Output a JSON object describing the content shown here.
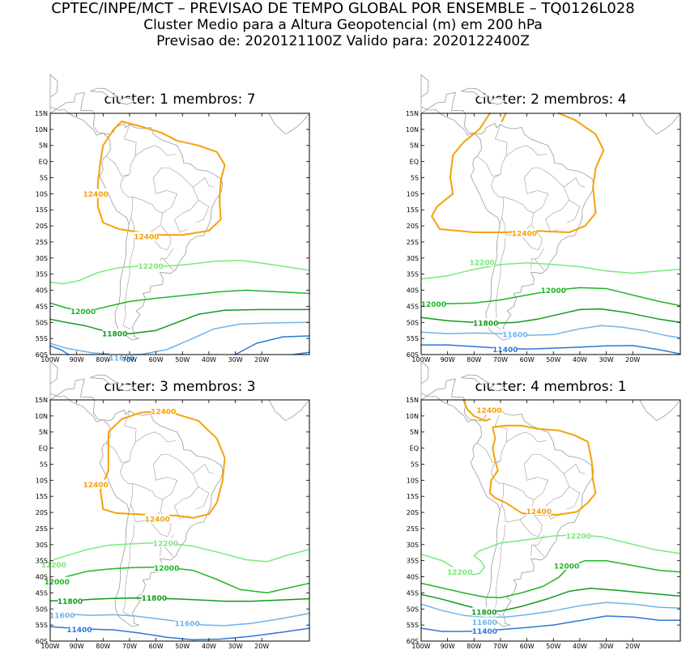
{
  "header": {
    "line1": "CPTEC/INPE/MCT – PREVISAO DE TEMPO GLOBAL POR ENSEMBLE – TQ0126L028",
    "line2": "Cluster Medio para a Altura Geopotencial (m) em 200 hPa",
    "line3": "Previsao de: 2020121100Z    Valido para: 2020122400Z"
  },
  "axes": {
    "lat_labels": [
      "15N",
      "10N",
      "5N",
      "EQ",
      "5S",
      "10S",
      "15S",
      "20S",
      "25S",
      "30S",
      "35S",
      "40S",
      "45S",
      "50S",
      "55S",
      "60S"
    ],
    "lon_labels": [
      "100W",
      "90W",
      "80W",
      "70W",
      "60W",
      "50W",
      "40W",
      "30W",
      "20W"
    ]
  },
  "colors": {
    "c12400": "#f5a10a",
    "c12200": "#7ae87a",
    "c12000": "#22b42a",
    "c11800": "#129a1a",
    "c11600": "#6fb4ec",
    "c11400": "#2e78d6",
    "land": "#9a9a9a"
  },
  "panels": [
    {
      "title": "cluster: 1   membros: 7",
      "labels": [
        {
          "text": "12400",
          "color": "c12400"
        },
        {
          "text": "12400",
          "color": "c12400"
        },
        {
          "text": "12200",
          "color": "c12200"
        },
        {
          "text": "12000",
          "color": "c12000"
        },
        {
          "text": "11800",
          "color": "c11800"
        },
        {
          "text": "11600",
          "color": "c11600"
        }
      ]
    },
    {
      "title": "cluster: 2   membros: 4",
      "labels": [
        {
          "text": "12400",
          "color": "c12400"
        },
        {
          "text": "12200",
          "color": "c12200"
        },
        {
          "text": "12000",
          "color": "c12000"
        },
        {
          "text": "12000",
          "color": "c12000"
        },
        {
          "text": "11800",
          "color": "c11800"
        },
        {
          "text": "11600",
          "color": "c11600"
        },
        {
          "text": "11400",
          "color": "c11400"
        }
      ]
    },
    {
      "title": "cluster: 3   membros: 3",
      "labels": [
        {
          "text": "12400",
          "color": "c12400"
        },
        {
          "text": "12400",
          "color": "c12400"
        },
        {
          "text": "12400",
          "color": "c12400"
        },
        {
          "text": "12200",
          "color": "c12200"
        },
        {
          "text": "12200",
          "color": "c12200"
        },
        {
          "text": "12000",
          "color": "c12000"
        },
        {
          "text": "12000",
          "color": "c12000"
        },
        {
          "text": "11800",
          "color": "c11800"
        },
        {
          "text": "11800",
          "color": "c11800"
        },
        {
          "text": "11600",
          "color": "c11600"
        },
        {
          "text": "11600",
          "color": "c11600"
        },
        {
          "text": "11400",
          "color": "c11400"
        }
      ]
    },
    {
      "title": "cluster: 4   membros: 1",
      "labels": [
        {
          "text": "12400",
          "color": "c12400"
        },
        {
          "text": "12400",
          "color": "c12400"
        },
        {
          "text": "12200",
          "color": "c12200"
        },
        {
          "text": "12200",
          "color": "c12200"
        },
        {
          "text": "12000",
          "color": "c12000"
        },
        {
          "text": "11800",
          "color": "c11800"
        },
        {
          "text": "11600",
          "color": "c11600"
        },
        {
          "text": "11400",
          "color": "c11400"
        }
      ]
    }
  ]
}
